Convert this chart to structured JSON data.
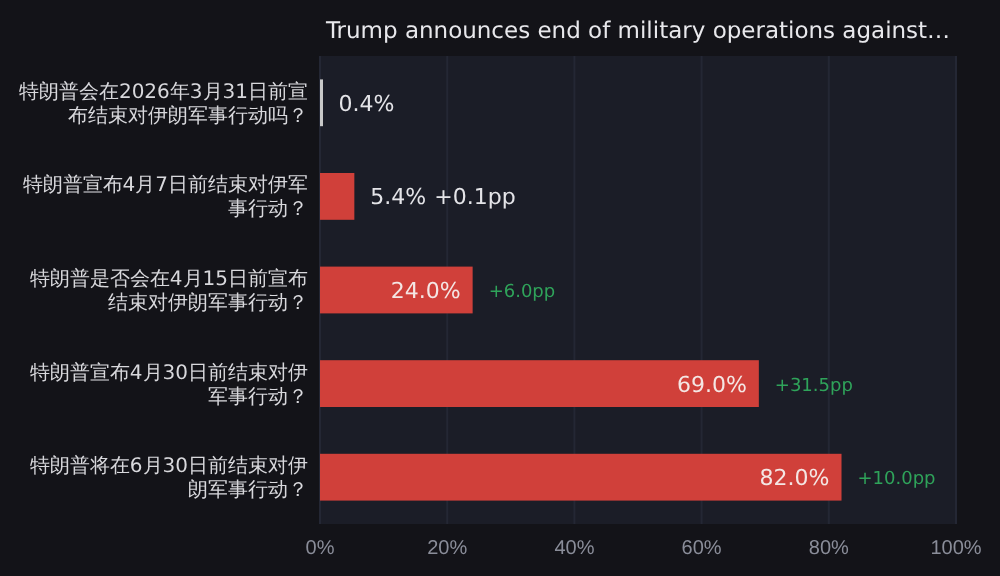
{
  "chart_data": {
    "type": "bar",
    "orientation": "horizontal",
    "title": "Trump announces end of military operations against…",
    "categories": [
      "特朗普会在2026年3月31日前宣布结束对伊朗军事行动吗？",
      "特朗普宣布4月7日前结束对伊军事行动？",
      "特朗普是否会在4月15日前宣布结束对伊朗军事行动？",
      "特朗普宣布4月30日前结束对伊军事行动？",
      "特朗普将在6月30日前结束对伊朗军事行动？"
    ],
    "values": [
      0.4,
      5.4,
      24.0,
      69.0,
      82.0
    ],
    "colors": [
      "#c8c8c8",
      "#d0403a",
      "#d0403a",
      "#d0403a",
      "#d0403a"
    ],
    "value_labels": [
      "0.4%",
      "5.4%",
      "24.0%",
      "69.0%",
      "82.0%"
    ],
    "annotations": [
      "+0.1pp",
      {
        "text": "+6.0pp",
        "x": 24.0,
        "y": "特朗普是否会在4月15日前宣布结束对伊朗军事行动？"
      },
      {
        "text": "+31.5pp",
        "x": 69.0,
        "y": "特朗普宣布4月30日前结束对伊军事行动？"
      },
      {
        "text": "+10.0pp",
        "x": 82.0,
        "y": "特朗普将在6月30日前结束对伊朗军事行动？"
      }
    ],
    "xlim": [
      0,
      100
    ],
    "xticks": [
      {
        "value": 0,
        "label": "0%"
      },
      {
        "value": 20,
        "label": "20%"
      },
      {
        "value": 40,
        "label": "40%"
      },
      {
        "value": 60,
        "label": "60%"
      },
      {
        "value": 80,
        "label": "80%"
      },
      {
        "value": 100,
        "label": "100%"
      }
    ],
    "grid": "x"
  }
}
